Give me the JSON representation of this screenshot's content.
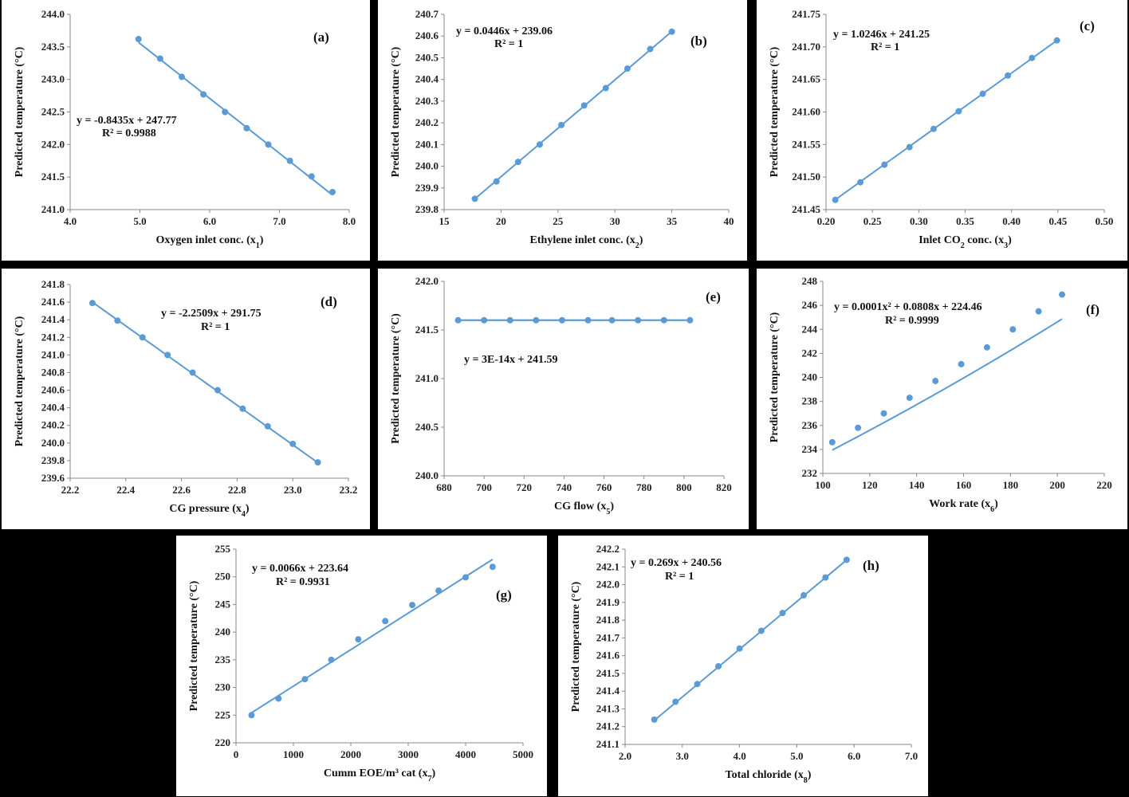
{
  "chart_data": [
    {
      "id": "a",
      "type": "scatter",
      "panel_label": "(a)",
      "xlabel": "Oxygen inlet conc. (x1)",
      "ylabel": "Predicted temperature (°C)",
      "xlim": [
        4.0,
        8.0
      ],
      "xticks": [
        4.0,
        5.0,
        6.0,
        7.0,
        8.0
      ],
      "xdec": 1,
      "ylim": [
        241.0,
        244.0
      ],
      "yticks": [
        241.0,
        241.5,
        242.0,
        242.5,
        243.0,
        243.5,
        244.0
      ],
      "ydec": 1,
      "points": [
        [
          4.98,
          243.62
        ],
        [
          5.29,
          243.32
        ],
        [
          5.6,
          243.04
        ],
        [
          5.91,
          242.77
        ],
        [
          6.22,
          242.5
        ],
        [
          6.53,
          242.25
        ],
        [
          6.84,
          242.0
        ],
        [
          7.15,
          241.75
        ],
        [
          7.46,
          241.51
        ],
        [
          7.76,
          241.27
        ]
      ],
      "trend": {
        "kind": "linear",
        "coef": [
          -0.8435,
          247.77
        ],
        "x": [
          4.98,
          7.76
        ]
      },
      "equation": "y = -0.8435x + 247.77",
      "r2": "R² = 0.9988",
      "color": "#5b9bd5"
    },
    {
      "id": "b",
      "type": "scatter",
      "panel_label": "(b)",
      "xlabel": "Ethylene inlet conc. (x2)",
      "ylabel": "Predicted temperature (°C)",
      "xlim": [
        15,
        40
      ],
      "xticks": [
        15,
        20,
        25,
        30,
        35,
        40
      ],
      "xdec": 0,
      "ylim": [
        239.8,
        240.7
      ],
      "yticks": [
        239.8,
        239.9,
        240.0,
        240.1,
        240.2,
        240.3,
        240.4,
        240.5,
        240.6,
        240.7
      ],
      "ydec": 1,
      "points": [
        [
          17.7,
          239.85
        ],
        [
          19.6,
          239.93
        ],
        [
          21.5,
          240.02
        ],
        [
          23.4,
          240.1
        ],
        [
          25.3,
          240.19
        ],
        [
          27.3,
          240.28
        ],
        [
          29.2,
          240.36
        ],
        [
          31.1,
          240.45
        ],
        [
          33.1,
          240.54
        ],
        [
          35.0,
          240.62
        ]
      ],
      "trend": {
        "kind": "linear",
        "coef": [
          0.0446,
          239.06
        ],
        "x": [
          17.7,
          35.0
        ]
      },
      "equation": "y = 0.0446x + 239.06",
      "r2": "R² = 1",
      "color": "#5b9bd5"
    },
    {
      "id": "c",
      "type": "scatter",
      "panel_label": "(c)",
      "xlabel": "Inlet CO2 conc. (x3)",
      "ylabel": "Predicted temperature (°C)",
      "xlim": [
        0.2,
        0.5
      ],
      "xticks": [
        0.2,
        0.25,
        0.3,
        0.35,
        0.4,
        0.45,
        0.5
      ],
      "xdec": 2,
      "ylim": [
        241.45,
        241.75
      ],
      "yticks": [
        241.45,
        241.5,
        241.55,
        241.6,
        241.65,
        241.7,
        241.75
      ],
      "ydec": 2,
      "points": [
        [
          0.21,
          241.465
        ],
        [
          0.237,
          241.492
        ],
        [
          0.263,
          241.519
        ],
        [
          0.29,
          241.546
        ],
        [
          0.316,
          241.574
        ],
        [
          0.343,
          241.601
        ],
        [
          0.369,
          241.628
        ],
        [
          0.396,
          241.656
        ],
        [
          0.422,
          241.683
        ],
        [
          0.449,
          241.71
        ]
      ],
      "trend": {
        "kind": "linear",
        "coef": [
          1.0246,
          241.25
        ],
        "x": [
          0.21,
          0.449
        ]
      },
      "equation": "y = 1.0246x + 241.25",
      "r2": "R² = 1",
      "color": "#5b9bd5"
    },
    {
      "id": "d",
      "type": "scatter",
      "panel_label": "(d)",
      "xlabel": "CG pressure (x4)",
      "ylabel": "Predicted temperature (°C)",
      "xlim": [
        22.2,
        23.2
      ],
      "xticks": [
        22.2,
        22.4,
        22.6,
        22.8,
        23.0,
        23.2
      ],
      "xdec": 1,
      "ylim": [
        239.6,
        241.8
      ],
      "yticks": [
        239.6,
        239.8,
        240.0,
        240.2,
        240.4,
        240.6,
        240.8,
        241.0,
        241.2,
        241.4,
        241.6,
        241.8
      ],
      "ydec": 1,
      "points": [
        [
          22.28,
          241.59
        ],
        [
          22.37,
          241.39
        ],
        [
          22.46,
          241.2
        ],
        [
          22.55,
          241.0
        ],
        [
          22.64,
          240.8
        ],
        [
          22.73,
          240.6
        ],
        [
          22.82,
          240.39
        ],
        [
          22.91,
          240.19
        ],
        [
          23.0,
          239.99
        ],
        [
          23.09,
          239.78
        ]
      ],
      "trend": {
        "kind": "linear",
        "coef": [
          -2.2509,
          291.75
        ],
        "x": [
          22.28,
          23.09
        ]
      },
      "equation": "y = -2.2509x + 291.75",
      "r2": "R² = 1",
      "color": "#5b9bd5"
    },
    {
      "id": "e",
      "type": "scatter",
      "panel_label": "(e)",
      "xlabel": "CG flow (x5)",
      "ylabel": "Predicted temperature (°C)",
      "xlim": [
        680,
        820
      ],
      "xticks": [
        680,
        700,
        720,
        740,
        760,
        780,
        800,
        820
      ],
      "xdec": 0,
      "ylim": [
        240.0,
        242.0
      ],
      "yticks": [
        240.0,
        240.5,
        241.0,
        241.5,
        242.0
      ],
      "ydec": 1,
      "points": [
        [
          687,
          241.6
        ],
        [
          700,
          241.6
        ],
        [
          713,
          241.6
        ],
        [
          726,
          241.6
        ],
        [
          739,
          241.6
        ],
        [
          752,
          241.6
        ],
        [
          764,
          241.6
        ],
        [
          777,
          241.6
        ],
        [
          790,
          241.6
        ],
        [
          803,
          241.6
        ]
      ],
      "trend": {
        "kind": "linear",
        "coef": [
          0,
          241.6
        ],
        "x": [
          687,
          803
        ]
      },
      "equation": "y = 3E-14x + 241.59",
      "r2": "",
      "color": "#5b9bd5"
    },
    {
      "id": "f",
      "type": "scatter",
      "panel_label": "(f)",
      "xlabel": "Work rate (x6)",
      "ylabel": "Predicted temperature (°C)",
      "xlim": [
        100,
        220
      ],
      "xticks": [
        100,
        120,
        140,
        160,
        180,
        200,
        220
      ],
      "xdec": 0,
      "ylim": [
        232,
        248
      ],
      "yticks": [
        232,
        234,
        236,
        238,
        240,
        242,
        244,
        246,
        248
      ],
      "ydec": 0,
      "points": [
        [
          104,
          234.6
        ],
        [
          115,
          235.8
        ],
        [
          126,
          237.0
        ],
        [
          137,
          238.3
        ],
        [
          148,
          239.7
        ],
        [
          159,
          241.1
        ],
        [
          170,
          242.5
        ],
        [
          181,
          244.0
        ],
        [
          192,
          245.5
        ],
        [
          202,
          246.9
        ]
      ],
      "trend": {
        "kind": "quadratic",
        "coef": [
          0.0001,
          0.0808,
          224.46
        ],
        "x": [
          104,
          202
        ]
      },
      "equation": "y = 0.0001x² + 0.0808x + 224.46",
      "r2": "R² = 0.9999",
      "color": "#5b9bd5"
    },
    {
      "id": "g",
      "type": "scatter",
      "panel_label": "(g)",
      "xlabel": "Cumm EOE/m³ cat (x7)",
      "ylabel": "Predicted temperature (°C)",
      "xlim": [
        0,
        5000
      ],
      "xticks": [
        0,
        1000,
        2000,
        3000,
        4000,
        5000
      ],
      "xdec": 0,
      "ylim": [
        220,
        255
      ],
      "yticks": [
        220,
        225,
        230,
        235,
        240,
        245,
        250,
        255
      ],
      "ydec": 0,
      "points": [
        [
          270,
          225.0
        ],
        [
          740,
          228.0
        ],
        [
          1200,
          231.5
        ],
        [
          1660,
          235.0
        ],
        [
          2130,
          238.7
        ],
        [
          2600,
          242.0
        ],
        [
          3070,
          244.9
        ],
        [
          3530,
          247.5
        ],
        [
          4000,
          249.9
        ],
        [
          4470,
          251.8
        ]
      ],
      "trend": {
        "kind": "linear",
        "coef": [
          0.0066,
          223.64
        ],
        "x": [
          270,
          4470
        ]
      },
      "equation": "y = 0.0066x + 223.64",
      "r2": "R² = 0.9931",
      "color": "#5b9bd5"
    },
    {
      "id": "h",
      "type": "scatter",
      "panel_label": "(h)",
      "xlabel": "Total chloride (x8)",
      "ylabel": "Predicted temperature (°C)",
      "xlim": [
        2.0,
        7.0
      ],
      "xticks": [
        2.0,
        3.0,
        4.0,
        5.0,
        6.0,
        7.0
      ],
      "xdec": 1,
      "ylim": [
        241.1,
        242.2
      ],
      "yticks": [
        241.1,
        241.2,
        241.3,
        241.4,
        241.5,
        241.6,
        241.7,
        241.8,
        241.9,
        242.0,
        242.1,
        242.2
      ],
      "ydec": 1,
      "points": [
        [
          2.51,
          241.24
        ],
        [
          2.88,
          241.34
        ],
        [
          3.26,
          241.44
        ],
        [
          3.63,
          241.54
        ],
        [
          4.0,
          241.64
        ],
        [
          4.38,
          241.74
        ],
        [
          4.75,
          241.84
        ],
        [
          5.12,
          241.94
        ],
        [
          5.5,
          242.04
        ],
        [
          5.87,
          242.14
        ]
      ],
      "trend": {
        "kind": "linear",
        "coef": [
          0.269,
          240.56
        ],
        "x": [
          2.51,
          5.87
        ]
      },
      "equation": "y = 0.269x + 240.56",
      "r2": "R² = 1",
      "color": "#5b9bd5"
    }
  ]
}
